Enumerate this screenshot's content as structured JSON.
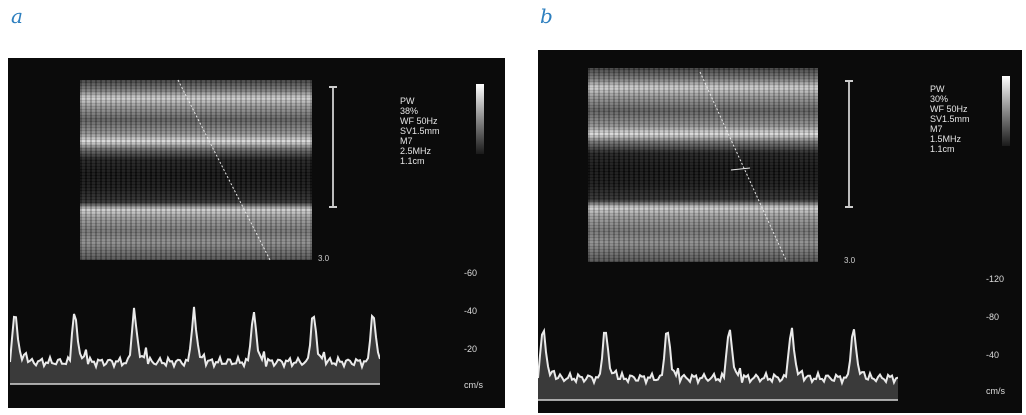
{
  "figure": {
    "panels": [
      {
        "label": "a",
        "params_text": "PW\n38%\nWF 50Hz\nSV1.5mm\nM7\n2.5MHz\n1.1cm",
        "depth_marker": "3.0",
        "velocity_ticks": [
          "-60",
          "-40",
          "-20",
          "cm/s"
        ]
      },
      {
        "label": "b",
        "params_text": "PW\n30%\nWF 50Hz\nSV1.5mm\nM7\n1.5MHz\n1.1cm",
        "depth_marker": "3.0",
        "velocity_ticks": [
          "-120",
          "-80",
          "-40",
          "cm/s"
        ]
      }
    ]
  }
}
